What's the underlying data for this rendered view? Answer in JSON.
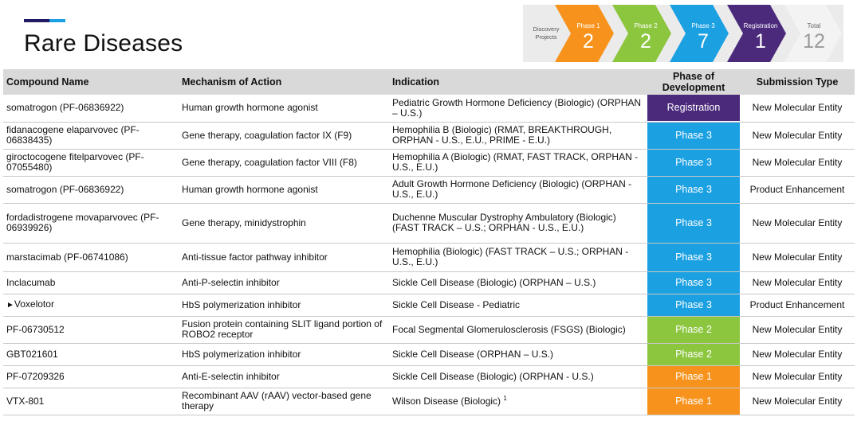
{
  "page": {
    "title": "Rare Diseases"
  },
  "pipeline": {
    "discovery": {
      "label_line1": "Discovery",
      "label_line2": "Projects"
    },
    "phases": [
      {
        "label": "Phase 1",
        "count": "2",
        "color": "#f7931d"
      },
      {
        "label": "Phase 2",
        "count": "2",
        "color": "#8cc63f"
      },
      {
        "label": "Phase 3",
        "count": "7",
        "color": "#1ba0e2"
      },
      {
        "label": "Registration",
        "count": "1",
        "color": "#4b2a7c"
      }
    ],
    "total": {
      "label": "Total",
      "count": "12"
    }
  },
  "table": {
    "headers": {
      "compound": "Compound Name",
      "mechanism": "Mechanism of Action",
      "indication": "Indication",
      "phase": "Phase of Development",
      "submission": "Submission Type"
    },
    "rows": [
      {
        "compound": "somatrogon (PF-06836922)",
        "mechanism": "Human growth hormone agonist",
        "indication": "Pediatric Growth Hormone Deficiency (Biologic) (ORPHAN – U.S.)",
        "phase": "Registration",
        "phase_color": "#4b2a7c",
        "submission": "New Molecular Entity"
      },
      {
        "compound": "fidanacogene elaparvovec (PF-06838435)",
        "mechanism": "Gene therapy, coagulation factor IX (F9)",
        "indication": "Hemophilia B (Biologic) (RMAT, BREAKTHROUGH, ORPHAN - U.S., E.U., PRIME - E.U.)",
        "phase": "Phase 3",
        "phase_color": "#1ba0e2",
        "submission": "New Molecular Entity"
      },
      {
        "compound": "giroctocogene fitelparvovec (PF-07055480)",
        "mechanism": "Gene therapy, coagulation factor VIII (F8)",
        "indication": "Hemophilia A (Biologic) (RMAT, FAST TRACK, ORPHAN - U.S., E.U.)",
        "phase": "Phase 3",
        "phase_color": "#1ba0e2",
        "submission": "New Molecular Entity"
      },
      {
        "compound": "somatrogon (PF-06836922)",
        "mechanism": "Human growth hormone agonist",
        "indication": "Adult Growth Hormone Deficiency (Biologic) (ORPHAN - U.S., E.U.)",
        "phase": "Phase 3",
        "phase_color": "#1ba0e2",
        "submission": "Product Enhancement"
      },
      {
        "compound": "fordadistrogene movaparvovec (PF-06939926)",
        "mechanism": "Gene therapy, minidystrophin",
        "indication": "Duchenne Muscular Dystrophy Ambulatory (Biologic) (FAST TRACK – U.S.; ORPHAN - U.S., E.U.)",
        "phase": "Phase 3",
        "phase_color": "#1ba0e2",
        "submission": "New Molecular Entity"
      },
      {
        "compound": "marstacimab (PF-06741086)",
        "mechanism": "Anti-tissue factor pathway inhibitor",
        "indication": "Hemophilia (Biologic) (FAST TRACK – U.S.; ORPHAN - U.S., E.U.)",
        "phase": "Phase 3",
        "phase_color": "#1ba0e2",
        "submission": "New Molecular Entity"
      },
      {
        "compound": "Inclacumab",
        "mechanism": "Anti-P-selectin inhibitor",
        "indication": "Sickle Cell Disease (Biologic) (ORPHAN – U.S.)",
        "phase": "Phase 3",
        "phase_color": "#1ba0e2",
        "submission": "New Molecular Entity"
      },
      {
        "compound": "Voxelotor",
        "marker": "►",
        "mechanism": "HbS polymerization inhibitor",
        "indication": "Sickle Cell Disease - Pediatric",
        "phase": "Phase 3",
        "phase_color": "#1ba0e2",
        "submission": "Product Enhancement"
      },
      {
        "compound": "PF-06730512",
        "mechanism": "Fusion protein containing SLIT ligand portion of ROBO2 receptor",
        "indication": "Focal Segmental Glomerulosclerosis (FSGS) (Biologic)",
        "phase": "Phase 2",
        "phase_color": "#8cc63f",
        "submission": "New Molecular Entity"
      },
      {
        "compound": "GBT021601",
        "mechanism": "HbS polymerization inhibitor",
        "indication": "Sickle Cell Disease (ORPHAN – U.S.)",
        "phase": "Phase 2",
        "phase_color": "#8cc63f",
        "submission": "New Molecular Entity"
      },
      {
        "compound": "PF-07209326",
        "mechanism": "Anti-E-selectin inhibitor",
        "indication": "Sickle Cell Disease (Biologic) (ORPHAN - U.S.)",
        "phase": "Phase 1",
        "phase_color": "#f7931d",
        "submission": "New Molecular Entity"
      },
      {
        "compound": "VTX-801",
        "mechanism": "Recombinant AAV (rAAV) vector-based gene therapy",
        "indication": "Wilson Disease (Biologic)",
        "footnote": "1",
        "phase": "Phase 1",
        "phase_color": "#f7931d",
        "submission": "New Molecular Entity"
      }
    ]
  }
}
